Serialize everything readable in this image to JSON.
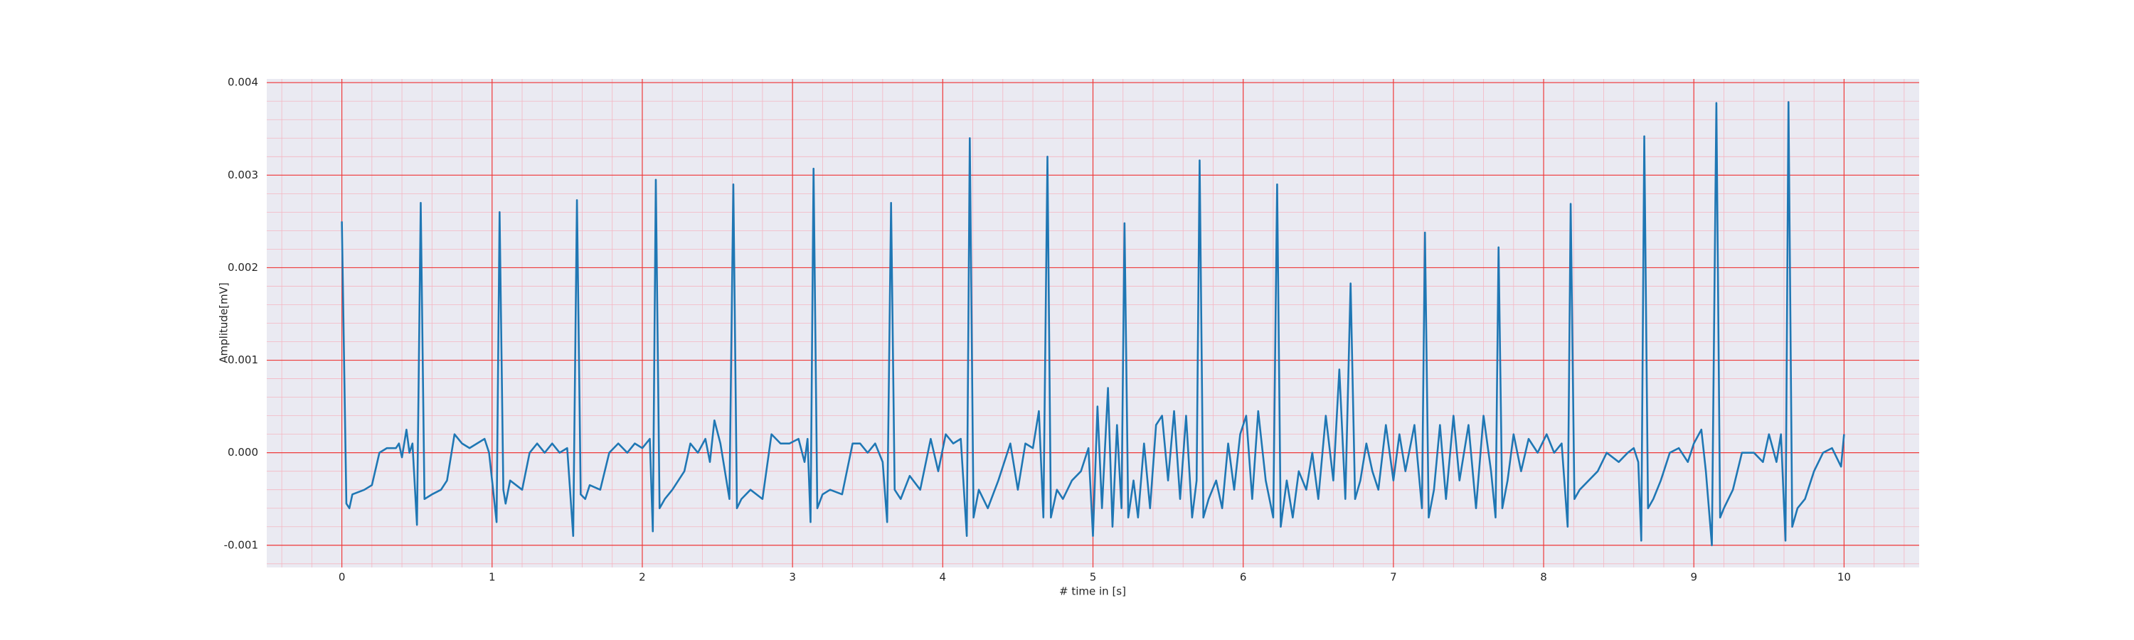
{
  "chart_data": {
    "type": "line",
    "xlabel": "# time in [s]",
    "ylabel": "Amplitude[mV]",
    "color": "#1f77b4",
    "grid": true,
    "minor_grid": true,
    "xlim": [
      -0.5,
      10.5
    ],
    "ylim": [
      -0.00124,
      0.00404
    ],
    "xticks": [
      0,
      1,
      2,
      3,
      4,
      5,
      6,
      7,
      8,
      9,
      10
    ],
    "yticks": [
      -0.001,
      {
        "value": 0,
        "label": "0.000"
      },
      0.001,
      0.002,
      0.003,
      0.004
    ],
    "x": [
      0,
      0.03,
      0.05,
      0.07,
      0.15,
      0.2,
      0.25,
      0.3,
      0.36,
      0.38,
      0.4,
      0.43,
      0.45,
      0.47,
      0.5,
      0.525,
      0.55,
      0.6,
      0.66,
      0.7,
      0.75,
      0.8,
      0.85,
      0.9,
      0.95,
      0.98,
      1.03,
      1.05,
      1.075,
      1.09,
      1.12,
      1.2,
      1.25,
      1.3,
      1.35,
      1.4,
      1.45,
      1.5,
      1.54,
      1.565,
      1.59,
      1.62,
      1.65,
      1.72,
      1.78,
      1.84,
      1.9,
      1.95,
      2.0,
      2.05,
      2.07,
      2.09,
      2.115,
      2.15,
      2.2,
      2.28,
      2.32,
      2.37,
      2.42,
      2.45,
      2.48,
      2.52,
      2.58,
      2.606,
      2.63,
      2.66,
      2.72,
      2.8,
      2.86,
      2.92,
      2.98,
      3.04,
      3.08,
      3.1,
      3.12,
      3.14,
      3.165,
      3.2,
      3.25,
      3.33,
      3.4,
      3.45,
      3.5,
      3.55,
      3.6,
      3.63,
      3.656,
      3.68,
      3.72,
      3.78,
      3.85,
      3.92,
      3.97,
      4.02,
      4.07,
      4.12,
      4.16,
      4.18,
      4.205,
      4.24,
      4.3,
      4.37,
      4.45,
      4.5,
      4.55,
      4.6,
      4.64,
      4.67,
      4.697,
      4.72,
      4.76,
      4.8,
      4.86,
      4.92,
      4.97,
      5.0,
      5.03,
      5.06,
      5.1,
      5.13,
      5.16,
      5.19,
      5.21,
      5.235,
      5.27,
      5.3,
      5.34,
      5.38,
      5.42,
      5.46,
      5.5,
      5.54,
      5.58,
      5.62,
      5.66,
      5.69,
      5.71,
      5.735,
      5.77,
      5.82,
      5.86,
      5.9,
      5.94,
      5.98,
      6.02,
      6.06,
      6.1,
      6.15,
      6.2,
      6.226,
      6.25,
      6.29,
      6.33,
      6.37,
      6.42,
      6.46,
      6.5,
      6.55,
      6.6,
      6.64,
      6.68,
      6.715,
      6.745,
      6.78,
      6.82,
      6.86,
      6.9,
      6.95,
      7.0,
      7.04,
      7.08,
      7.14,
      7.19,
      7.21,
      7.235,
      7.27,
      7.31,
      7.35,
      7.4,
      7.44,
      7.5,
      7.55,
      7.6,
      7.65,
      7.68,
      7.7,
      7.725,
      7.76,
      7.8,
      7.85,
      7.9,
      7.96,
      8.02,
      8.07,
      8.12,
      8.16,
      8.18,
      8.205,
      8.24,
      8.3,
      8.36,
      8.42,
      8.5,
      8.56,
      8.6,
      8.63,
      8.65,
      8.67,
      8.695,
      8.73,
      8.78,
      8.84,
      8.9,
      8.96,
      9.0,
      9.05,
      9.08,
      9.12,
      9.15,
      9.175,
      9.2,
      9.26,
      9.32,
      9.4,
      9.46,
      9.5,
      9.55,
      9.58,
      9.61,
      9.63,
      9.655,
      9.69,
      9.74,
      9.8,
      9.86,
      9.92,
      9.98,
      10.0
    ],
    "values": [
      0.0025,
      -0.00055,
      -0.0006,
      -0.00045,
      -0.0004,
      -0.00035,
      0.0,
      5e-05,
      5e-05,
      0.0001,
      -5e-05,
      0.00025,
      0.0,
      0.0001,
      -0.00078,
      0.0027,
      -0.0005,
      -0.00045,
      -0.0004,
      -0.0003,
      0.0002,
      0.0001,
      5e-05,
      0.0001,
      0.00015,
      0.0,
      -0.00075,
      0.0026,
      -0.0004,
      -0.00055,
      -0.0003,
      -0.0004,
      0.0,
      0.0001,
      0.0,
      0.0001,
      0.0,
      5e-05,
      -0.0009,
      0.00273,
      -0.00045,
      -0.0005,
      -0.00035,
      -0.0004,
      0.0,
      0.0001,
      0.0,
      0.0001,
      5e-05,
      0.00015,
      -0.00085,
      0.00295,
      -0.0006,
      -0.0005,
      -0.0004,
      -0.0002,
      0.0001,
      0.0,
      0.00015,
      -0.0001,
      0.00035,
      0.0001,
      -0.0005,
      0.0029,
      -0.0006,
      -0.0005,
      -0.0004,
      -0.0005,
      0.0002,
      0.0001,
      0.0001,
      0.00015,
      -0.0001,
      0.00015,
      -0.00075,
      0.00307,
      -0.0006,
      -0.00045,
      -0.0004,
      -0.00045,
      0.0001,
      0.0001,
      0.0,
      0.0001,
      -0.0001,
      -0.00075,
      0.0027,
      -0.0004,
      -0.0005,
      -0.00025,
      -0.0004,
      0.00015,
      -0.0002,
      0.0002,
      0.0001,
      0.00015,
      -0.0009,
      0.0034,
      -0.0007,
      -0.0004,
      -0.0006,
      -0.0003,
      0.0001,
      -0.0004,
      0.0001,
      5e-05,
      0.00045,
      -0.0007,
      0.0032,
      -0.0007,
      -0.0004,
      -0.0005,
      -0.0003,
      -0.0002,
      5e-05,
      -0.0009,
      0.0005,
      -0.0006,
      0.0007,
      -0.0008,
      0.0003,
      -0.0006,
      0.00248,
      -0.0007,
      -0.0003,
      -0.0007,
      0.0001,
      -0.0006,
      0.0003,
      0.0004,
      -0.0003,
      0.00045,
      -0.0005,
      0.0004,
      -0.0007,
      -0.0003,
      0.00316,
      -0.0007,
      -0.0005,
      -0.0003,
      -0.0006,
      0.0001,
      -0.0004,
      0.0002,
      0.0004,
      -0.0005,
      0.00045,
      -0.0003,
      -0.0007,
      0.0029,
      -0.0008,
      -0.0003,
      -0.0007,
      -0.0002,
      -0.0004,
      0.0,
      -0.0005,
      0.0004,
      -0.0003,
      0.0009,
      -0.0005,
      0.00183,
      -0.0005,
      -0.0003,
      0.0001,
      -0.0002,
      -0.0004,
      0.0003,
      -0.0003,
      0.0002,
      -0.0002,
      0.0003,
      -0.0006,
      0.00238,
      -0.0007,
      -0.0004,
      0.0003,
      -0.0005,
      0.0004,
      -0.0003,
      0.0003,
      -0.0006,
      0.0004,
      -0.0002,
      -0.0007,
      0.00222,
      -0.0006,
      -0.0003,
      0.0002,
      -0.0002,
      0.00015,
      0.0,
      0.0002,
      0.0,
      0.0001,
      -0.0008,
      0.00269,
      -0.0005,
      -0.0004,
      -0.0003,
      -0.0002,
      0.0,
      -0.0001,
      0.0,
      5e-05,
      -0.0001,
      -0.00095,
      0.00342,
      -0.0006,
      -0.0005,
      -0.0003,
      0.0,
      5e-05,
      -0.0001,
      0.0001,
      0.00025,
      -0.0002,
      -0.001,
      0.00378,
      -0.0007,
      -0.0006,
      -0.0004,
      0.0,
      0.0,
      -0.0001,
      0.0002,
      -0.0001,
      0.0002,
      -0.00095,
      0.00379,
      -0.0008,
      -0.0006,
      -0.0005,
      -0.0002,
      0.0,
      5e-05,
      -0.00015,
      0.0002
    ]
  }
}
